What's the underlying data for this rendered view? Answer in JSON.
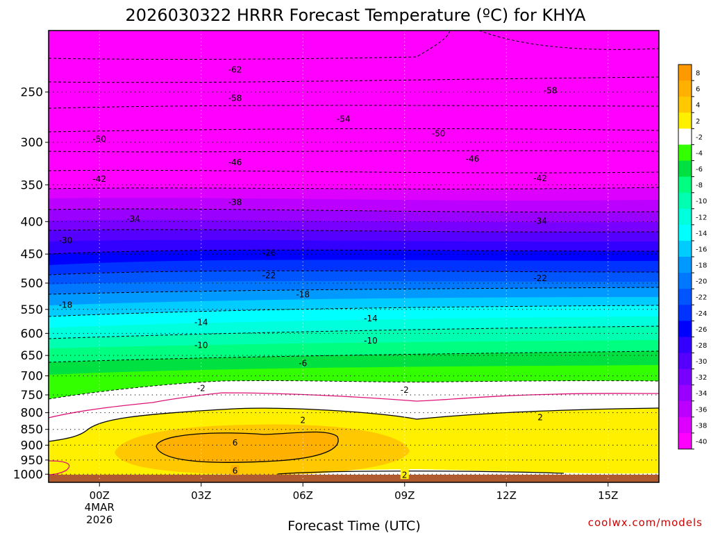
{
  "chart_data": {
    "type": "heatmap",
    "title": "2026030322 HRRR Forecast Temperature (ºC) for KHYA",
    "xlabel": "Forecast Time (UTC)",
    "ylabel": "",
    "credit": "coolwx.com/models",
    "y_scale": "log-pressure-inverted",
    "ylim": [
      1030,
      200
    ],
    "xlim_hours": [
      -1.5,
      16.5
    ],
    "grid": "dotted",
    "x_ticks": [
      {
        "hour": 0,
        "label": "00Z",
        "sub1": "4MAR",
        "sub2": "2026"
      },
      {
        "hour": 3,
        "label": "03Z"
      },
      {
        "hour": 6,
        "label": "06Z"
      },
      {
        "hour": 9,
        "label": "09Z"
      },
      {
        "hour": 12,
        "label": "12Z"
      },
      {
        "hour": 15,
        "label": "15Z"
      }
    ],
    "y_ticks": [
      {
        "p": 250,
        "label": "250"
      },
      {
        "p": 300,
        "label": "300"
      },
      {
        "p": 350,
        "label": "350"
      },
      {
        "p": 400,
        "label": "400"
      },
      {
        "p": 450,
        "label": "450"
      },
      {
        "p": 500,
        "label": "500"
      },
      {
        "p": 550,
        "label": "550"
      },
      {
        "p": 600,
        "label": "600"
      },
      {
        "p": 650,
        "label": "650"
      },
      {
        "p": 700,
        "label": "700"
      },
      {
        "p": 750,
        "label": "750"
      },
      {
        "p": 800,
        "label": "800"
      },
      {
        "p": 850,
        "label": "850"
      },
      {
        "p": 900,
        "label": "900"
      },
      {
        "p": 950,
        "label": "950"
      },
      {
        "p": 1000,
        "label": "1000"
      }
    ],
    "contour_labels": [
      {
        "hour": 4.0,
        "p": 230,
        "label": "-62"
      },
      {
        "hour": 4.0,
        "p": 255,
        "label": "-58"
      },
      {
        "hour": 13.3,
        "p": 248,
        "label": "-58"
      },
      {
        "hour": 7.2,
        "p": 275,
        "label": "-54"
      },
      {
        "hour": 0.0,
        "p": 296,
        "label": "-50"
      },
      {
        "hour": 10.0,
        "p": 290,
        "label": "-50"
      },
      {
        "hour": 4.0,
        "p": 322,
        "label": "-46"
      },
      {
        "hour": 11.0,
        "p": 318,
        "label": "-46"
      },
      {
        "hour": 0.0,
        "p": 342,
        "label": "-42"
      },
      {
        "hour": 13.0,
        "p": 341,
        "label": "-42"
      },
      {
        "hour": 4.0,
        "p": 372,
        "label": "-38"
      },
      {
        "hour": 1.0,
        "p": 395,
        "label": "-34"
      },
      {
        "hour": 13.0,
        "p": 398,
        "label": "-34"
      },
      {
        "hour": -1.0,
        "p": 427,
        "label": "-30"
      },
      {
        "hour": 5.0,
        "p": 447,
        "label": "-26"
      },
      {
        "hour": 5.0,
        "p": 485,
        "label": "-22"
      },
      {
        "hour": 13.0,
        "p": 490,
        "label": "-22"
      },
      {
        "hour": 6.0,
        "p": 520,
        "label": "-18"
      },
      {
        "hour": -1.0,
        "p": 540,
        "label": "-18"
      },
      {
        "hour": 3.0,
        "p": 575,
        "label": "-14"
      },
      {
        "hour": 8.0,
        "p": 567,
        "label": "-14"
      },
      {
        "hour": 3.0,
        "p": 625,
        "label": "-10"
      },
      {
        "hour": 8.0,
        "p": 615,
        "label": "-10"
      },
      {
        "hour": 6.0,
        "p": 667,
        "label": "-6"
      },
      {
        "hour": 3.0,
        "p": 730,
        "label": "-2"
      },
      {
        "hour": 9.0,
        "p": 735,
        "label": "-2"
      },
      {
        "hour": 6.0,
        "p": 820,
        "label": "2"
      },
      {
        "hour": 13.0,
        "p": 812,
        "label": "2"
      },
      {
        "hour": 4.0,
        "p": 890,
        "label": "6"
      },
      {
        "hour": 4.0,
        "p": 985,
        "label": "6"
      },
      {
        "hour": 9.0,
        "p": 1000,
        "label": "2"
      }
    ],
    "legend": {
      "placement": "right",
      "levels": [
        "8",
        "6",
        "4",
        "2",
        "-2",
        "-4",
        "-6",
        "-8",
        "-10",
        "-12",
        "-14",
        "-16",
        "-18",
        "-20",
        "-22",
        "-24",
        "-26",
        "-28",
        "-30",
        "-32",
        "-34",
        "-36",
        "-38",
        "-40"
      ],
      "colors": [
        "#ff9900",
        "#ffb000",
        "#ffc800",
        "#fff000",
        "#ffffff",
        "#33ff00",
        "#00e040",
        "#00ff80",
        "#00ffb0",
        "#00ffdd",
        "#00ffff",
        "#00ccff",
        "#0099ff",
        "#0077ff",
        "#0055ff",
        "#0033ff",
        "#0000ff",
        "#3300ff",
        "#5500ff",
        "#7700ff",
        "#9900ff",
        "#bb00ff",
        "#dd00ff",
        "#ff00ff"
      ]
    }
  }
}
